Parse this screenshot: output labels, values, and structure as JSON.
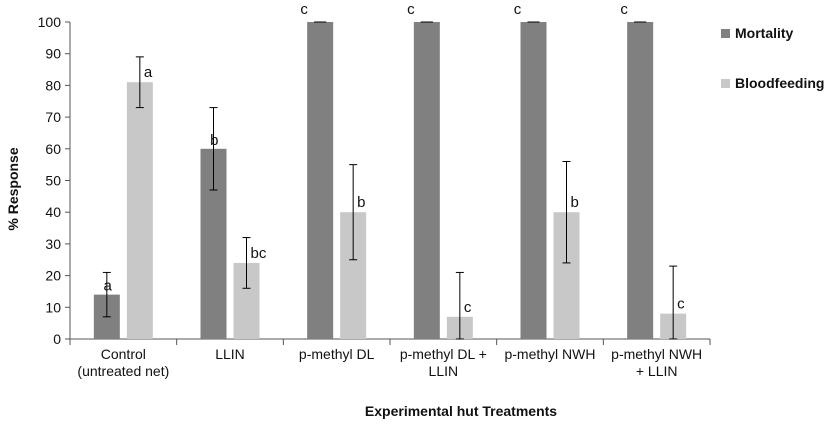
{
  "chart_data": {
    "type": "bar",
    "categories": [
      [
        "Control",
        "(untreated net)"
      ],
      [
        "LLIN"
      ],
      [
        "p-methyl  DL"
      ],
      [
        "p-methyl DL +",
        "LLIN"
      ],
      [
        "p-methyl NWH"
      ],
      [
        "p-methyl NWH",
        "+ LLIN"
      ]
    ],
    "series": [
      {
        "name": "Mortality",
        "color": "#808080",
        "values": [
          14,
          60,
          100,
          100,
          100,
          100
        ],
        "error": [
          7,
          13,
          0,
          0,
          0,
          0
        ],
        "labels": [
          "a",
          "b",
          "c",
          "c",
          "c",
          "c"
        ]
      },
      {
        "name": "Bloodfeeding",
        "color": "#c8c8c8",
        "values": [
          81,
          24,
          40,
          7,
          40,
          8
        ],
        "error": [
          8,
          8,
          15,
          14,
          16,
          15
        ],
        "labels": [
          "a",
          "bc",
          "b",
          "c",
          "b",
          "c"
        ]
      }
    ],
    "ylabel": "% Response",
    "xlabel": "Experimental hut Treatments",
    "ylim": [
      0,
      100
    ],
    "yticks": [
      0,
      10,
      20,
      30,
      40,
      50,
      60,
      70,
      80,
      90,
      100
    ],
    "legend_position": "top-right"
  }
}
